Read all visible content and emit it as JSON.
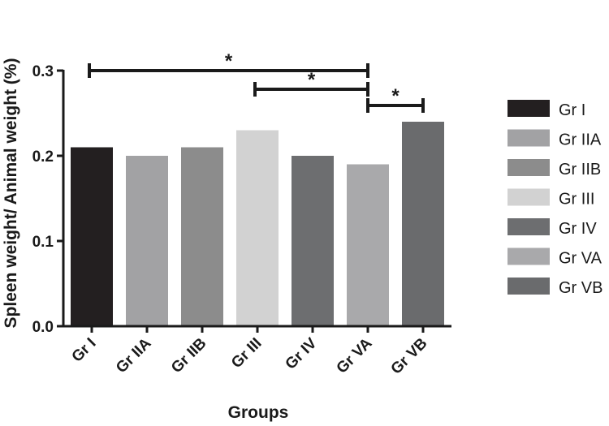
{
  "chart_data": {
    "type": "bar",
    "title": "",
    "xlabel": "Groups",
    "ylabel": "Spleen weight/ Animal weight (%)",
    "categories": [
      "Gr I",
      "Gr IIA",
      "Gr IIB",
      "Gr III",
      "Gr IV",
      "Gr VA",
      "Gr VB"
    ],
    "values": [
      0.21,
      0.2,
      0.21,
      0.23,
      0.2,
      0.19,
      0.24
    ],
    "colors": [
      "#231f20",
      "#a2a2a4",
      "#8c8c8c",
      "#d2d2d2",
      "#6d6e70",
      "#a9a9ab",
      "#6a6b6d"
    ],
    "ylim": [
      0.0,
      0.3
    ],
    "yticks": [
      "0.0",
      "0.1",
      "0.2",
      "0.3"
    ],
    "grid": false,
    "legend_position": "right",
    "legend": [
      "Gr I",
      "Gr IIA",
      "Gr IIB",
      "Gr III",
      "Gr IV",
      "Gr VA",
      "Gr VB"
    ],
    "significance": [
      {
        "from": "Gr I",
        "to": "Gr VA",
        "label": "*"
      },
      {
        "from": "Gr III",
        "to": "Gr VA",
        "label": "*"
      },
      {
        "from": "Gr VA",
        "to": "Gr VB",
        "label": "*"
      }
    ]
  }
}
